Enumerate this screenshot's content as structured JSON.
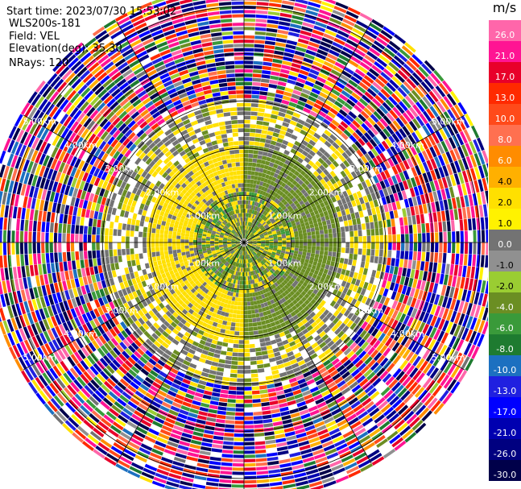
{
  "header": {
    "start_time": "Start time: 2023/07/30 15:53:02",
    "instrument": "WLS200s-181",
    "field": "Field: VEL",
    "elevation": "Elevation(deg): 35.30",
    "nrays": "NRays: 120"
  },
  "colorbar": {
    "unit": "m/s",
    "levels": [
      26.0,
      21.0,
      17.0,
      13.0,
      10.0,
      8.0,
      6.0,
      4.0,
      2.0,
      1.0,
      0.0,
      -1.0,
      -2.0,
      -4.0,
      -6.0,
      -8.0,
      -10.0,
      -13.0,
      -17.0,
      -21.0,
      -26.0,
      -30.0
    ],
    "labels": [
      "26.0",
      "21.0",
      "17.0",
      "13.0",
      "10.0",
      "8.0",
      "6.0",
      "4.0",
      "2.0",
      "1.0",
      "0.0",
      "-1.0",
      "-2.0",
      "-4.0",
      "-6.0",
      "-8.0",
      "-10.0",
      "-13.0",
      "-17.0",
      "-21.0",
      "-26.0",
      "-30.0"
    ],
    "colors": [
      "#ff66aa",
      "#ff1493",
      "#e8002a",
      "#ff2a00",
      "#ff4a1a",
      "#ff7050",
      "#ff8c00",
      "#ffb000",
      "#ffe000",
      "#fff200",
      "#737373",
      "#909090",
      "#9acd32",
      "#6b8e23",
      "#3a9a3a",
      "#1e7b30",
      "#1c70c0",
      "#2020e0",
      "#0000ff",
      "#0000b0",
      "#000080",
      "#00004a"
    ]
  },
  "chart_data": {
    "type": "ppi",
    "field": "VEL",
    "unit": "m/s",
    "n_rays": 120,
    "elevation_deg": 35.3,
    "range_rings_km": [
      1.0,
      2.0,
      3.0,
      4.0,
      5.0
    ],
    "range_ring_labels": [
      "1.00km",
      "2.00km",
      "3.00km",
      "4.00km",
      "5.00km"
    ],
    "spoke_spacing_deg": 30,
    "regions": [
      {
        "range_km": [
          0,
          1.0
        ],
        "description": "mixed near-zero velocities",
        "dominant_levels": [
          -2.0,
          -4.0,
          0.0,
          2.0
        ]
      },
      {
        "range_km": [
          1.0,
          2.0
        ],
        "description": "coherent wind field: west half positive, east half negative",
        "west_level": 2.0,
        "east_level": -2.0
      },
      {
        "range_km": [
          2.0,
          3.0
        ],
        "description": "partially coherent with gray near-zero gates",
        "dominant_levels": [
          0.0,
          2.0,
          -2.0
        ]
      },
      {
        "range_km": [
          3.0,
          5.4
        ],
        "description": "noisy random velocities across full scale",
        "range": [
          -30.0,
          26.0
        ]
      }
    ]
  }
}
